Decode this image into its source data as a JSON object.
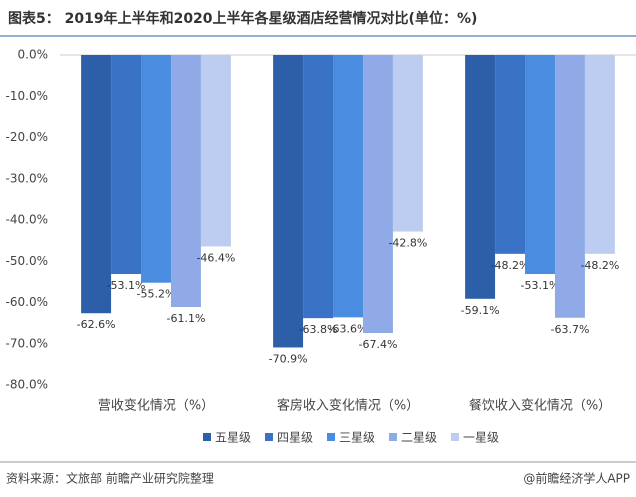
{
  "chart_data": {
    "type": "bar",
    "title": "图表5： 2019年上半年和2020上半年各星级酒店经营情况对比(单位：%)",
    "categories": [
      "营收变化情况（%）",
      "客房收入变化情况（%）",
      "餐饮收入变化情况（%）"
    ],
    "series": [
      {
        "name": "五星级",
        "color": "#2d5ea8",
        "values": [
          -62.6,
          -70.9,
          -59.1
        ],
        "value_labels": [
          "-62.6%",
          "-70.9%",
          "-59.1%"
        ]
      },
      {
        "name": "四星级",
        "color": "#3a73c6",
        "values": [
          -53.1,
          -63.8,
          -48.2
        ],
        "value_labels": [
          "-53.1%",
          "-63.8%",
          "-48.2%"
        ]
      },
      {
        "name": "三星级",
        "color": "#4a8de0",
        "values": [
          -55.2,
          -63.6,
          -53.1
        ],
        "value_labels": [
          "-55.2%",
          "-63.6%",
          "-53.1%"
        ]
      },
      {
        "name": "二星级",
        "color": "#8faae6",
        "values": [
          -61.1,
          -67.4,
          -63.7
        ],
        "value_labels": [
          "-61.1%",
          "-67.4%",
          "-63.7%"
        ]
      },
      {
        "name": "一星级",
        "color": "#bccdf1",
        "values": [
          -46.4,
          -42.8,
          -48.2
        ],
        "value_labels": [
          "-46.4%",
          "-42.8%",
          "-48.2%"
        ]
      }
    ],
    "ylim": [
      -80,
      0
    ],
    "yticks": [
      {
        "value": 0,
        "label": "0.0%"
      },
      {
        "value": -10,
        "label": "-10.0%"
      },
      {
        "value": -20,
        "label": "-20.0%"
      },
      {
        "value": -30,
        "label": "-30.0%"
      },
      {
        "value": -40,
        "label": "-40.0%"
      },
      {
        "value": -50,
        "label": "-50.0%"
      },
      {
        "value": -60,
        "label": "-60.0%"
      },
      {
        "value": -70,
        "label": "-70.0%"
      },
      {
        "value": -80,
        "label": "-80.0%"
      }
    ],
    "grid": false,
    "legend": "bottom",
    "source": "资料来源：文旅部 前瞻产业研究院整理",
    "credit": "@前瞻经济学人APP"
  }
}
